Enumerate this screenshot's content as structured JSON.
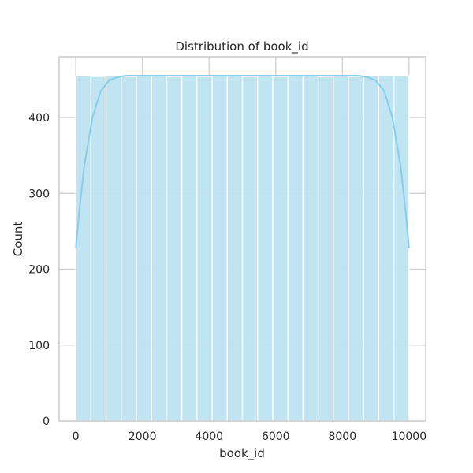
{
  "chart_data": {
    "type": "bar",
    "title": "Distribution of book_id",
    "xlabel": "book_id",
    "ylabel": "Count",
    "xlim": [
      -500,
      10500
    ],
    "ylim": [
      0,
      480
    ],
    "xticks": [
      0,
      2000,
      4000,
      6000,
      8000,
      10000
    ],
    "yticks": [
      0,
      100,
      200,
      300,
      400
    ],
    "grid": true,
    "bar_color": "#bde3f1",
    "kde_color": "#87ceeb",
    "bins": [
      {
        "x0": 1,
        "x1": 455,
        "count": 455
      },
      {
        "x0": 455,
        "x1": 910,
        "count": 454
      },
      {
        "x0": 910,
        "x1": 1364,
        "count": 455
      },
      {
        "x0": 1364,
        "x1": 1819,
        "count": 454
      },
      {
        "x0": 1819,
        "x1": 2273,
        "count": 455
      },
      {
        "x0": 2273,
        "x1": 2728,
        "count": 455
      },
      {
        "x0": 2728,
        "x1": 3182,
        "count": 454
      },
      {
        "x0": 3182,
        "x1": 3637,
        "count": 455
      },
      {
        "x0": 3637,
        "x1": 4091,
        "count": 454
      },
      {
        "x0": 4091,
        "x1": 4546,
        "count": 455
      },
      {
        "x0": 4546,
        "x1": 5000,
        "count": 455
      },
      {
        "x0": 5000,
        "x1": 5455,
        "count": 454
      },
      {
        "x0": 5455,
        "x1": 5910,
        "count": 455
      },
      {
        "x0": 5910,
        "x1": 6364,
        "count": 454
      },
      {
        "x0": 6364,
        "x1": 6819,
        "count": 455
      },
      {
        "x0": 6819,
        "x1": 7273,
        "count": 455
      },
      {
        "x0": 7273,
        "x1": 7728,
        "count": 454
      },
      {
        "x0": 7728,
        "x1": 8182,
        "count": 455
      },
      {
        "x0": 8182,
        "x1": 8637,
        "count": 454
      },
      {
        "x0": 8637,
        "x1": 9091,
        "count": 455
      },
      {
        "x0": 9091,
        "x1": 9546,
        "count": 455
      },
      {
        "x0": 9546,
        "x1": 10000,
        "count": 455
      }
    ],
    "kde": {
      "x": [
        1,
        100,
        250,
        500,
        750,
        1000,
        1250,
        1500,
        2000,
        3000,
        4000,
        5000,
        6000,
        7000,
        8000,
        8500,
        8750,
        9000,
        9250,
        9500,
        9750,
        9900,
        10000
      ],
      "y": [
        228,
        275,
        335,
        400,
        435,
        449,
        453,
        455,
        455,
        455,
        455,
        455,
        455,
        455,
        455,
        455,
        453,
        449,
        435,
        400,
        335,
        275,
        228
      ]
    }
  }
}
